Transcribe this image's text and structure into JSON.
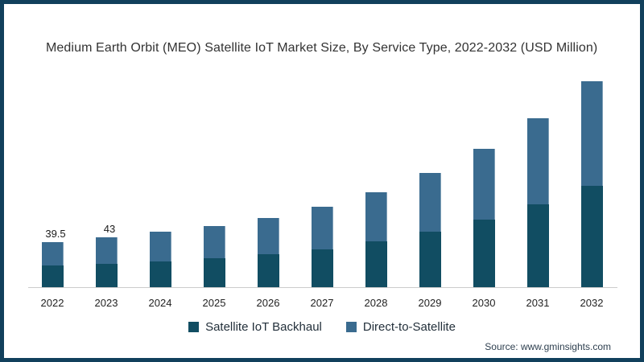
{
  "title": "Medium Earth Orbit (MEO) Satellite IoT Market Size, By Service Type, 2022-2032 (USD Million)",
  "source": "Source: www.gminsights.com",
  "colors": {
    "backhaul": "#114d62",
    "direct": "#3a6b8f",
    "frame_border": "#11405c",
    "axis_line": "#cccccc",
    "title_text": "#333333",
    "source_text": "#2f4050"
  },
  "legend": {
    "position": "bottom",
    "items": [
      {
        "label": "Satellite IoT Backhaul",
        "color": "#114d62"
      },
      {
        "label": "Direct-to-Satellite",
        "color": "#3a6b8f"
      }
    ]
  },
  "chart_data": {
    "type": "bar",
    "stacked": true,
    "title": "Medium Earth Orbit (MEO) Satellite IoT Market Size, By Service Type, 2022-2032 (USD Million)",
    "xlabel": "",
    "ylabel": "USD Million",
    "ylim": [
      0,
      190
    ],
    "grid": false,
    "legend_position": "bottom",
    "categories": [
      "2022",
      "2023",
      "2024",
      "2025",
      "2026",
      "2027",
      "2028",
      "2029",
      "2030",
      "2031",
      "2032"
    ],
    "series": [
      {
        "name": "Satellite IoT Backhaul",
        "color": "#114d62",
        "values": [
          19,
          20,
          22.5,
          25,
          28.5,
          33,
          39.5,
          48,
          58.5,
          71.5,
          87.5
        ]
      },
      {
        "name": "Direct-to-Satellite",
        "color": "#3a6b8f",
        "values": [
          20.5,
          23,
          25.5,
          28,
          31.5,
          37,
          42.5,
          50.5,
          61,
          74.5,
          90.5
        ]
      }
    ],
    "totals": [
      39.5,
      43,
      48,
      53,
      60,
      70,
      82,
      98.5,
      119.5,
      146,
      178
    ],
    "data_labels": [
      "39.5",
      "43",
      "",
      "",
      "",
      "",
      "",
      "",
      "",
      "",
      ""
    ]
  }
}
